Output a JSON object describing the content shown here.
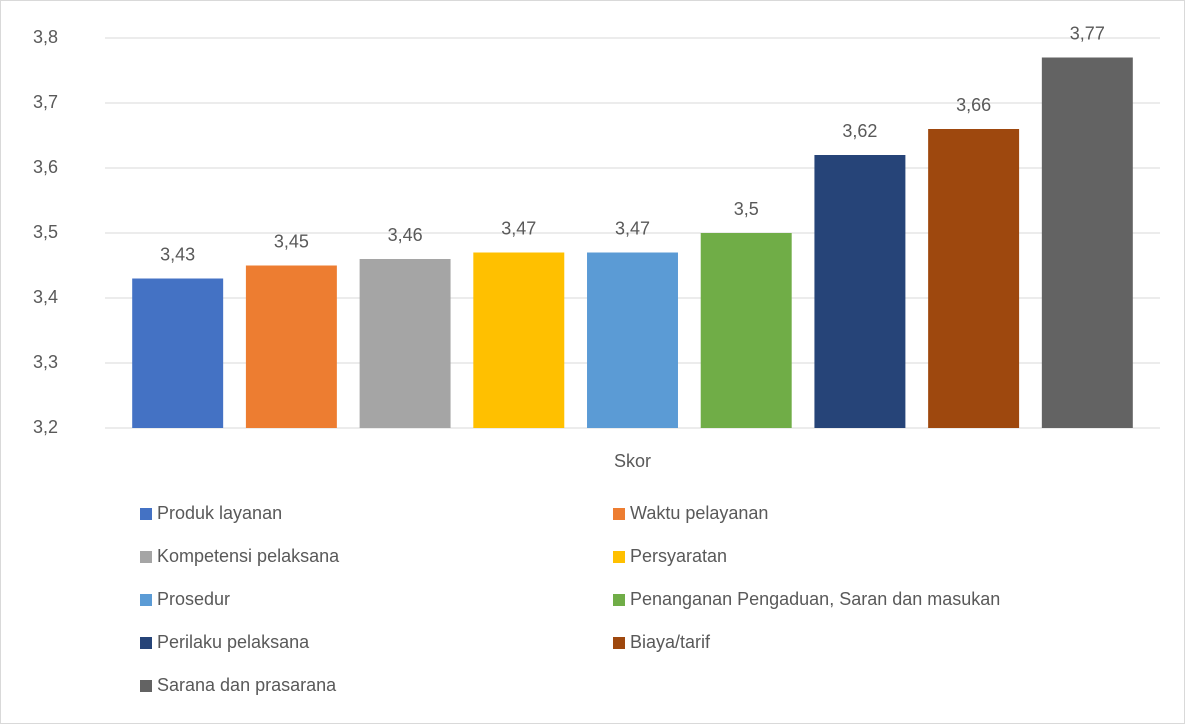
{
  "chart_data": {
    "type": "bar",
    "categories": [
      "Skor"
    ],
    "series": [
      {
        "name": "Produk layanan",
        "color": "#4472c4",
        "values": [
          3.43
        ],
        "value_labels": [
          "3,43"
        ]
      },
      {
        "name": "Waktu pelayanan",
        "color": "#ed7d31",
        "values": [
          3.45
        ],
        "value_labels": [
          "3,45"
        ]
      },
      {
        "name": "Kompetensi pelaksana",
        "color": "#a5a5a5",
        "values": [
          3.46
        ],
        "value_labels": [
          "3,46"
        ]
      },
      {
        "name": "Persyaratan",
        "color": "#ffc000",
        "values": [
          3.47
        ],
        "value_labels": [
          "3,47"
        ]
      },
      {
        "name": "Prosedur",
        "color": "#5b9bd5",
        "values": [
          3.47
        ],
        "value_labels": [
          "3,47"
        ]
      },
      {
        "name": "Penanganan Pengaduan, Saran dan masukan",
        "color": "#70ad47",
        "values": [
          3.5
        ],
        "value_labels": [
          "3,5"
        ]
      },
      {
        "name": "Perilaku pelaksana",
        "color": "#264478",
        "values": [
          3.62
        ],
        "value_labels": [
          "3,62"
        ]
      },
      {
        "name": "Biaya/tarif",
        "color": "#9e480e",
        "values": [
          3.66
        ],
        "value_labels": [
          "3,66"
        ]
      },
      {
        "name": "Sarana dan prasarana",
        "color": "#636363",
        "values": [
          3.77
        ],
        "value_labels": [
          "3,77"
        ]
      }
    ],
    "ylim": [
      3.2,
      3.8
    ],
    "yticks": [
      {
        "value": 3.2,
        "label": "3,2"
      },
      {
        "value": 3.3,
        "label": "3,3"
      },
      {
        "value": 3.4,
        "label": "3,4"
      },
      {
        "value": 3.5,
        "label": "3,5"
      },
      {
        "value": 3.6,
        "label": "3,6"
      },
      {
        "value": 3.7,
        "label": "3,7"
      },
      {
        "value": 3.8,
        "label": "3,8"
      }
    ],
    "grid": true
  }
}
